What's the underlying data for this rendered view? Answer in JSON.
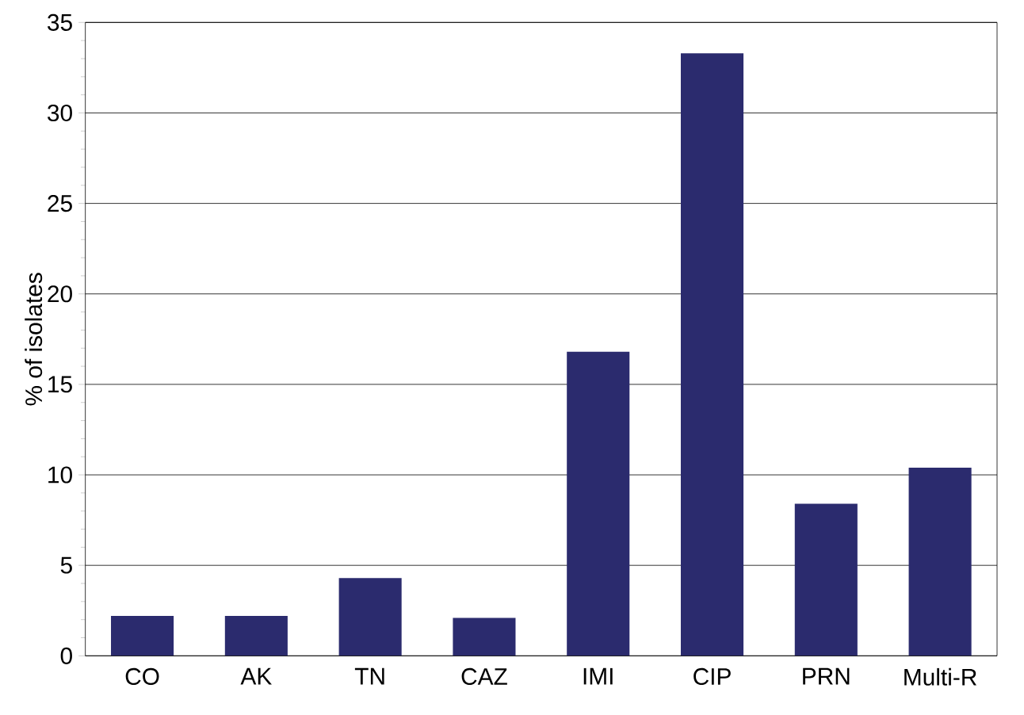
{
  "chart_data": {
    "type": "bar",
    "ylabel": "% of isolates",
    "categories": [
      "CO",
      "AK",
      "TN",
      "CAZ",
      "IMI",
      "CIP",
      "PRN",
      "Multi-R"
    ],
    "values": [
      2.2,
      2.2,
      4.3,
      2.1,
      16.8,
      33.3,
      8.4,
      10.4
    ],
    "color": "#2b2b6e",
    "ylim": [
      0,
      35
    ],
    "yticks": [
      0,
      5,
      10,
      15,
      20,
      25,
      30,
      35
    ],
    "grid": "y"
  }
}
